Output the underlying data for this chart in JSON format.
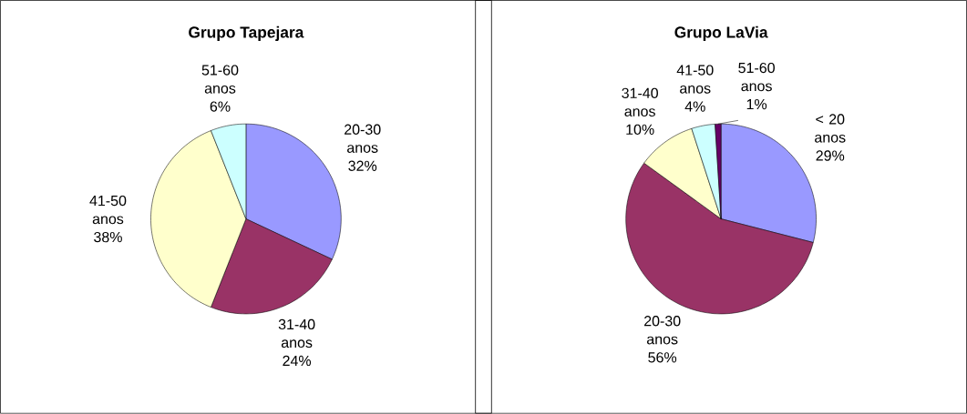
{
  "chart_data": [
    {
      "type": "pie",
      "title": "Grupo Tapejara",
      "categories": [
        "20-30 anos",
        "31-40 anos",
        "41-50 anos",
        "51-60 anos"
      ],
      "values": [
        32,
        24,
        38,
        6
      ],
      "value_labels": [
        "32%",
        "24%",
        "38%",
        "6%"
      ],
      "colors": [
        "#9999ff",
        "#993366",
        "#ffffcc",
        "#ccffff"
      ]
    },
    {
      "type": "pie",
      "title": "Grupo LaVia",
      "categories": [
        "< 20 anos",
        "20-30 anos",
        "31-40 anos",
        "41-50 anos",
        "51-60 anos"
      ],
      "values": [
        29,
        56,
        10,
        4,
        1
      ],
      "value_labels": [
        "29%",
        "56%",
        "10%",
        "4%",
        "1%"
      ],
      "colors": [
        "#9999ff",
        "#993366",
        "#ffffcc",
        "#ccffff",
        "#660066"
      ]
    }
  ]
}
